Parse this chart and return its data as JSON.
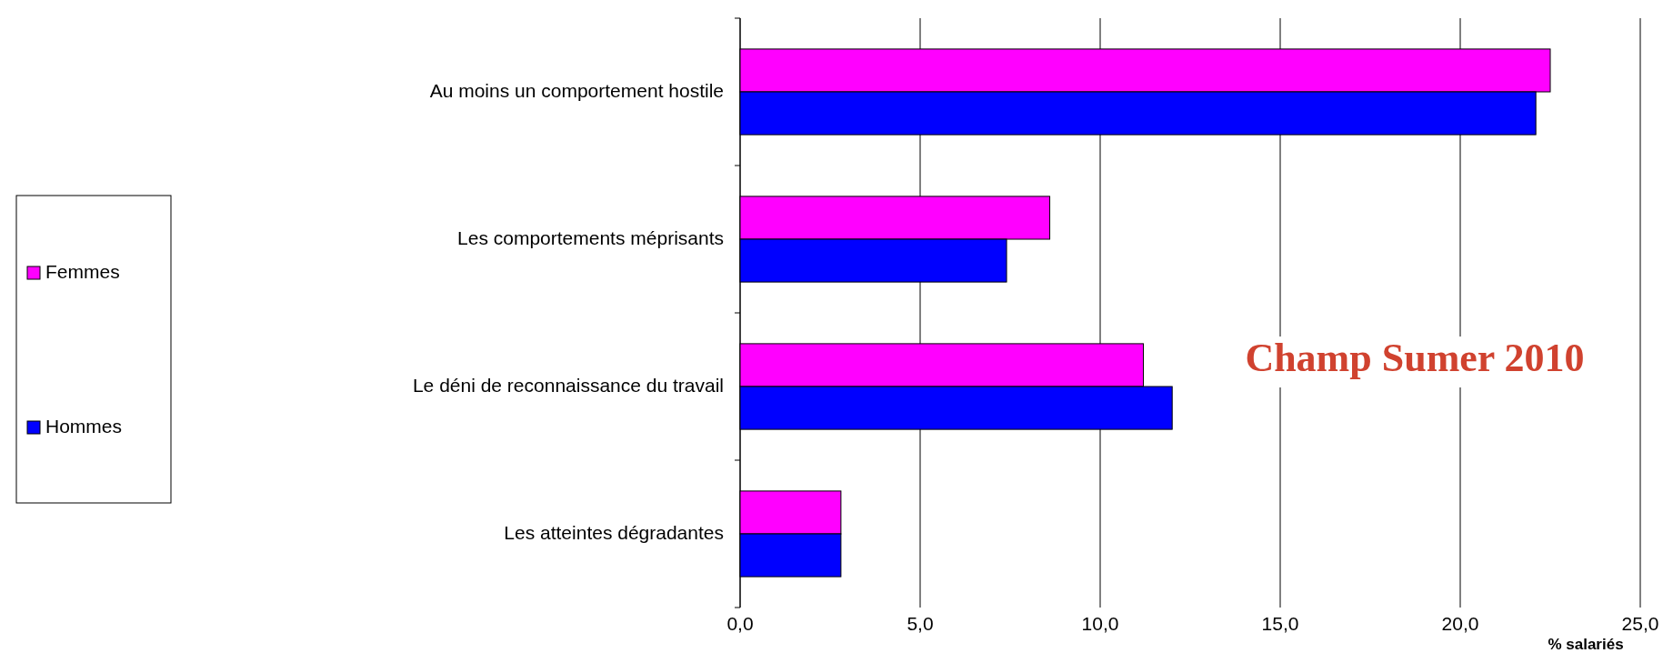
{
  "chart_data": {
    "type": "bar",
    "orientation": "horizontal",
    "categories": [
      "Au moins un comportement hostile",
      "Les comportements méprisants",
      "Le déni de reconnaissance du travail",
      "Les atteintes dégradantes"
    ],
    "series": [
      {
        "name": "Femmes",
        "color": "#ff00ff",
        "values": [
          22.5,
          8.6,
          11.2,
          2.8
        ]
      },
      {
        "name": "Hommes",
        "color": "#0000ff",
        "values": [
          22.1,
          7.4,
          12.0,
          2.8
        ]
      }
    ],
    "xlim": [
      0,
      25
    ],
    "xticks": [
      {
        "value": 0,
        "label": "0,0"
      },
      {
        "value": 5,
        "label": "5,0"
      },
      {
        "value": 10,
        "label": "10,0"
      },
      {
        "value": 15,
        "label": "15,0"
      },
      {
        "value": 20,
        "label": "20,0"
      },
      {
        "value": 25,
        "label": "25,0"
      }
    ],
    "xlabel": "% salariés",
    "grid": "x",
    "legend": "left",
    "annotations": [
      "Champ Sumer 2010"
    ]
  }
}
